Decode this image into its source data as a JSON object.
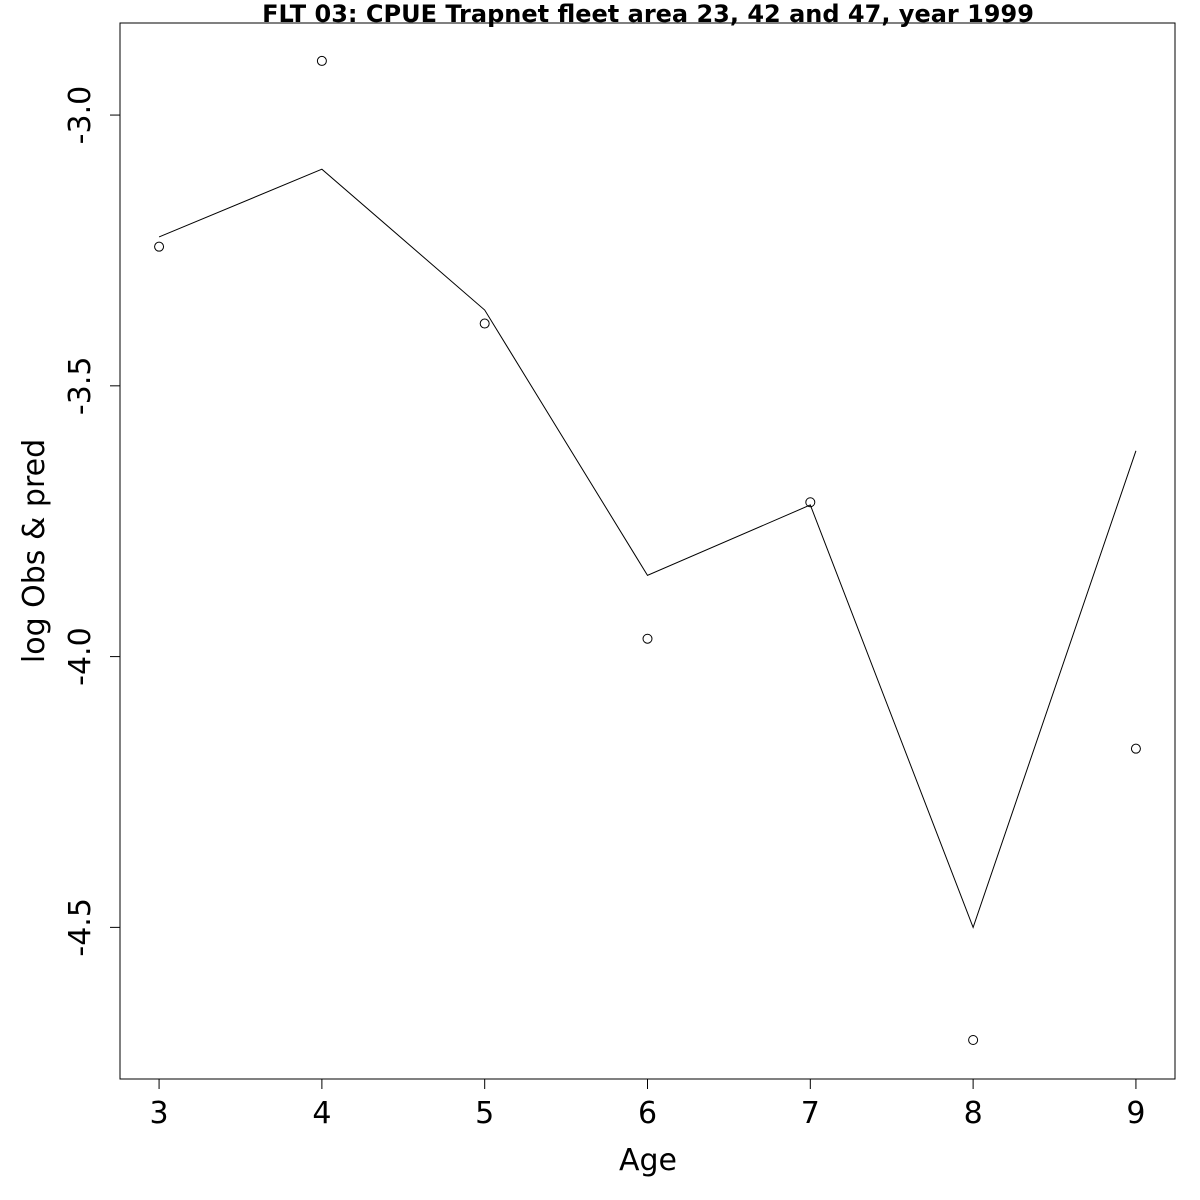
{
  "chart_data": {
    "type": "line",
    "title": "FLT 03: CPUE Trapnet fleet area 23, 42 and 47, year 1999",
    "xlabel": "Age",
    "ylabel": "log Obs & pred",
    "x": [
      3,
      4,
      5,
      6,
      7,
      8,
      9
    ],
    "x_ticks": [
      "3",
      "4",
      "5",
      "6",
      "7",
      "8",
      "9"
    ],
    "y_ticks": [
      "-3.0",
      "-3.5",
      "-4.0",
      "-4.5"
    ],
    "y_tick_values": [
      -3.0,
      -3.5,
      -4.0,
      -4.5
    ],
    "xlim": [
      2.76,
      9.24
    ],
    "ylim": [
      -4.78,
      -2.83
    ],
    "grid": false,
    "series": [
      {
        "kind": "line",
        "values": [
          -3.225,
          -3.1,
          -3.36,
          -3.85,
          -3.72,
          -4.5,
          -3.62
        ]
      },
      {
        "kind": "points",
        "marker": "open-circle",
        "values": [
          -3.243,
          -2.9,
          -3.385,
          -3.967,
          -3.715,
          -4.708,
          -4.17
        ]
      }
    ]
  }
}
